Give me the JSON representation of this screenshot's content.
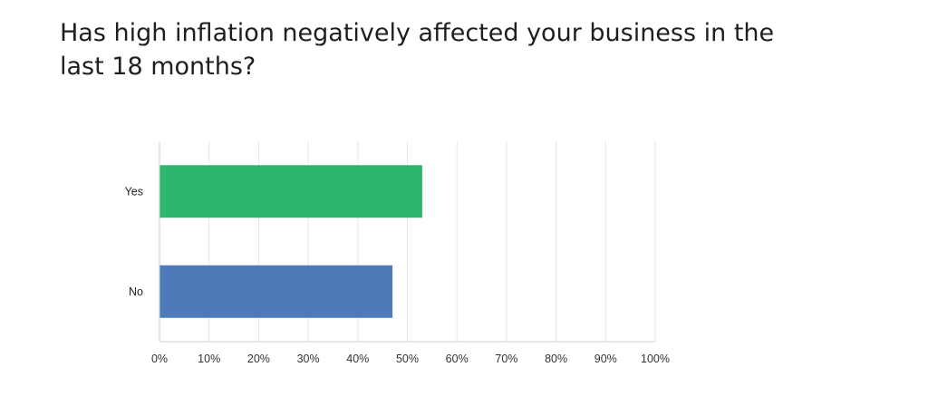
{
  "chart_data": {
    "type": "bar",
    "orientation": "horizontal",
    "title": "Has high inflation negatively affected your business in the last 18 months?",
    "categories": [
      "Yes",
      "No"
    ],
    "values": [
      53,
      47
    ],
    "unit": "%",
    "colors": [
      "#2eb66e",
      "#4e7ab9"
    ],
    "xlim": [
      0,
      100
    ],
    "xticks": [
      "0%",
      "10%",
      "20%",
      "30%",
      "40%",
      "50%",
      "60%",
      "70%",
      "80%",
      "90%",
      "100%"
    ],
    "grid": true,
    "legend": "none",
    "xlabel": "",
    "ylabel": ""
  }
}
